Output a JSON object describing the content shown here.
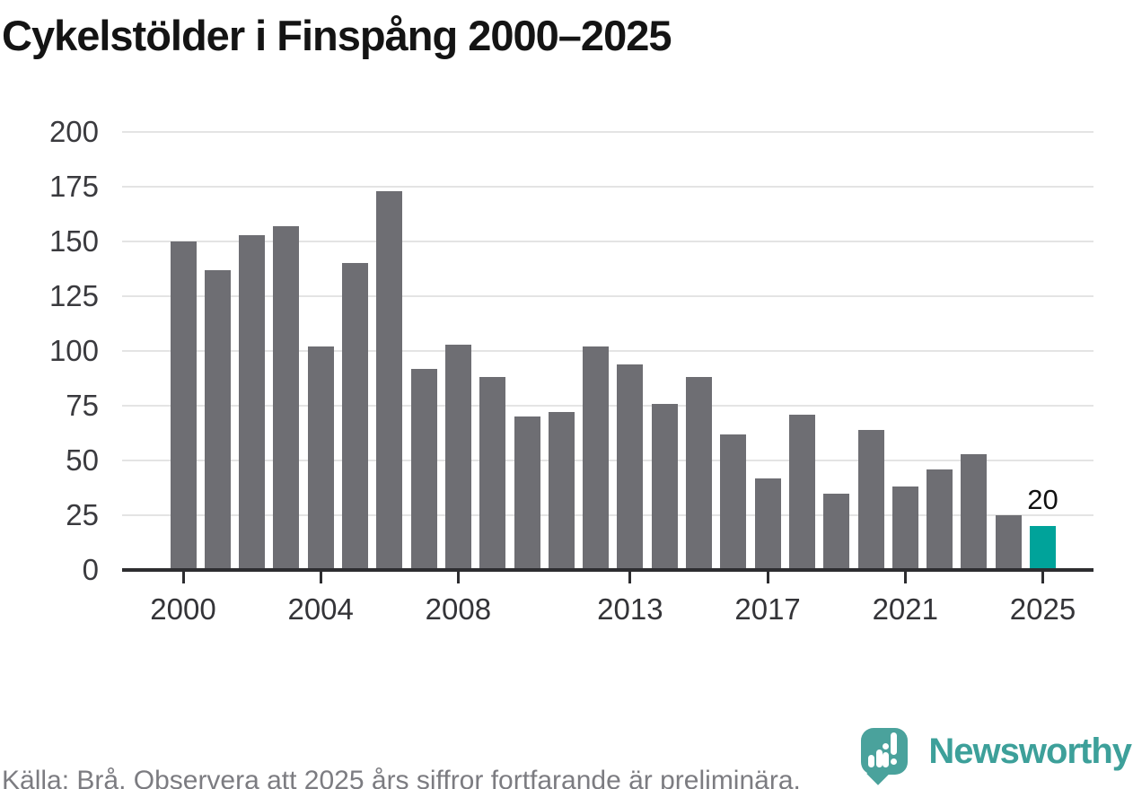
{
  "chart_data": {
    "type": "bar",
    "title": "Cykelstölder i Finspång 2000–2025",
    "categories": [
      2000,
      2001,
      2002,
      2003,
      2004,
      2005,
      2006,
      2007,
      2008,
      2009,
      2010,
      2011,
      2012,
      2013,
      2014,
      2015,
      2016,
      2017,
      2018,
      2019,
      2020,
      2021,
      2022,
      2023,
      2024,
      2025
    ],
    "values": [
      150,
      137,
      153,
      157,
      102,
      140,
      173,
      92,
      103,
      88,
      70,
      72,
      102,
      94,
      76,
      88,
      62,
      42,
      71,
      35,
      64,
      38,
      46,
      53,
      25,
      20
    ],
    "ylim": [
      0,
      200
    ],
    "yticks": [
      0,
      25,
      50,
      75,
      100,
      125,
      150,
      175,
      200
    ],
    "xticks": [
      2000,
      2004,
      2008,
      2013,
      2017,
      2021,
      2025
    ],
    "grid": "horizontal",
    "bar_color": "#6e6e73",
    "highlight_index": 25,
    "highlight_color": "#00a39a",
    "annotation": {
      "index": 25,
      "text": "20"
    }
  },
  "footer": {
    "source_note": "Källa: Brå. Observera att 2025 års siffror fortfarande är preliminära."
  },
  "branding": {
    "logo_text": "Newsworthy",
    "logo_color": "#3da09a",
    "logo_icon": "map-pin-with-bar-chart"
  }
}
